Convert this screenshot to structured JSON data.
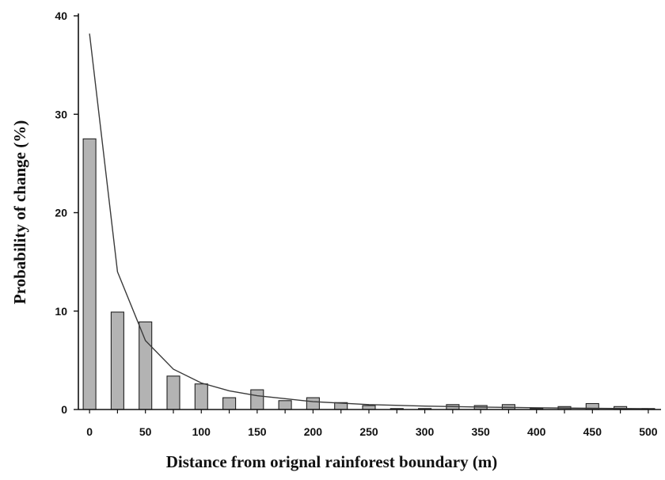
{
  "chart_data": {
    "type": "bar",
    "title": "",
    "xlabel": "Distance from orignal rainforest boundary (m)",
    "ylabel": "Probability of change (%)",
    "ylim": [
      0,
      40
    ],
    "xlim": [
      -10,
      510
    ],
    "yticks": [
      0,
      10,
      20,
      30,
      40
    ],
    "xticks": [
      0,
      50,
      100,
      150,
      200,
      250,
      300,
      350,
      400,
      450,
      500
    ],
    "grid": false,
    "legend": "none",
    "bar_color": "#b3b3b3",
    "series": [
      {
        "type": "bar",
        "x": [
          0,
          25,
          50,
          75,
          100,
          125,
          150,
          175,
          200,
          225,
          250,
          275,
          300,
          325,
          350,
          375,
          400,
          425,
          450,
          475,
          500
        ],
        "values": [
          27.5,
          9.9,
          8.9,
          3.4,
          2.6,
          1.2,
          2.0,
          0.9,
          1.2,
          0.7,
          0.4,
          0.1,
          0.1,
          0.5,
          0.4,
          0.5,
          0.1,
          0.3,
          0.6,
          0.3,
          0.1
        ]
      },
      {
        "type": "line",
        "x": [
          0,
          25,
          50,
          75,
          100,
          125,
          150,
          175,
          200,
          250,
          300,
          350,
          400,
          450,
          500
        ],
        "values": [
          38.2,
          14.0,
          7.0,
          4.1,
          2.7,
          1.9,
          1.4,
          1.1,
          0.8,
          0.5,
          0.35,
          0.25,
          0.18,
          0.12,
          0.08
        ]
      }
    ]
  }
}
